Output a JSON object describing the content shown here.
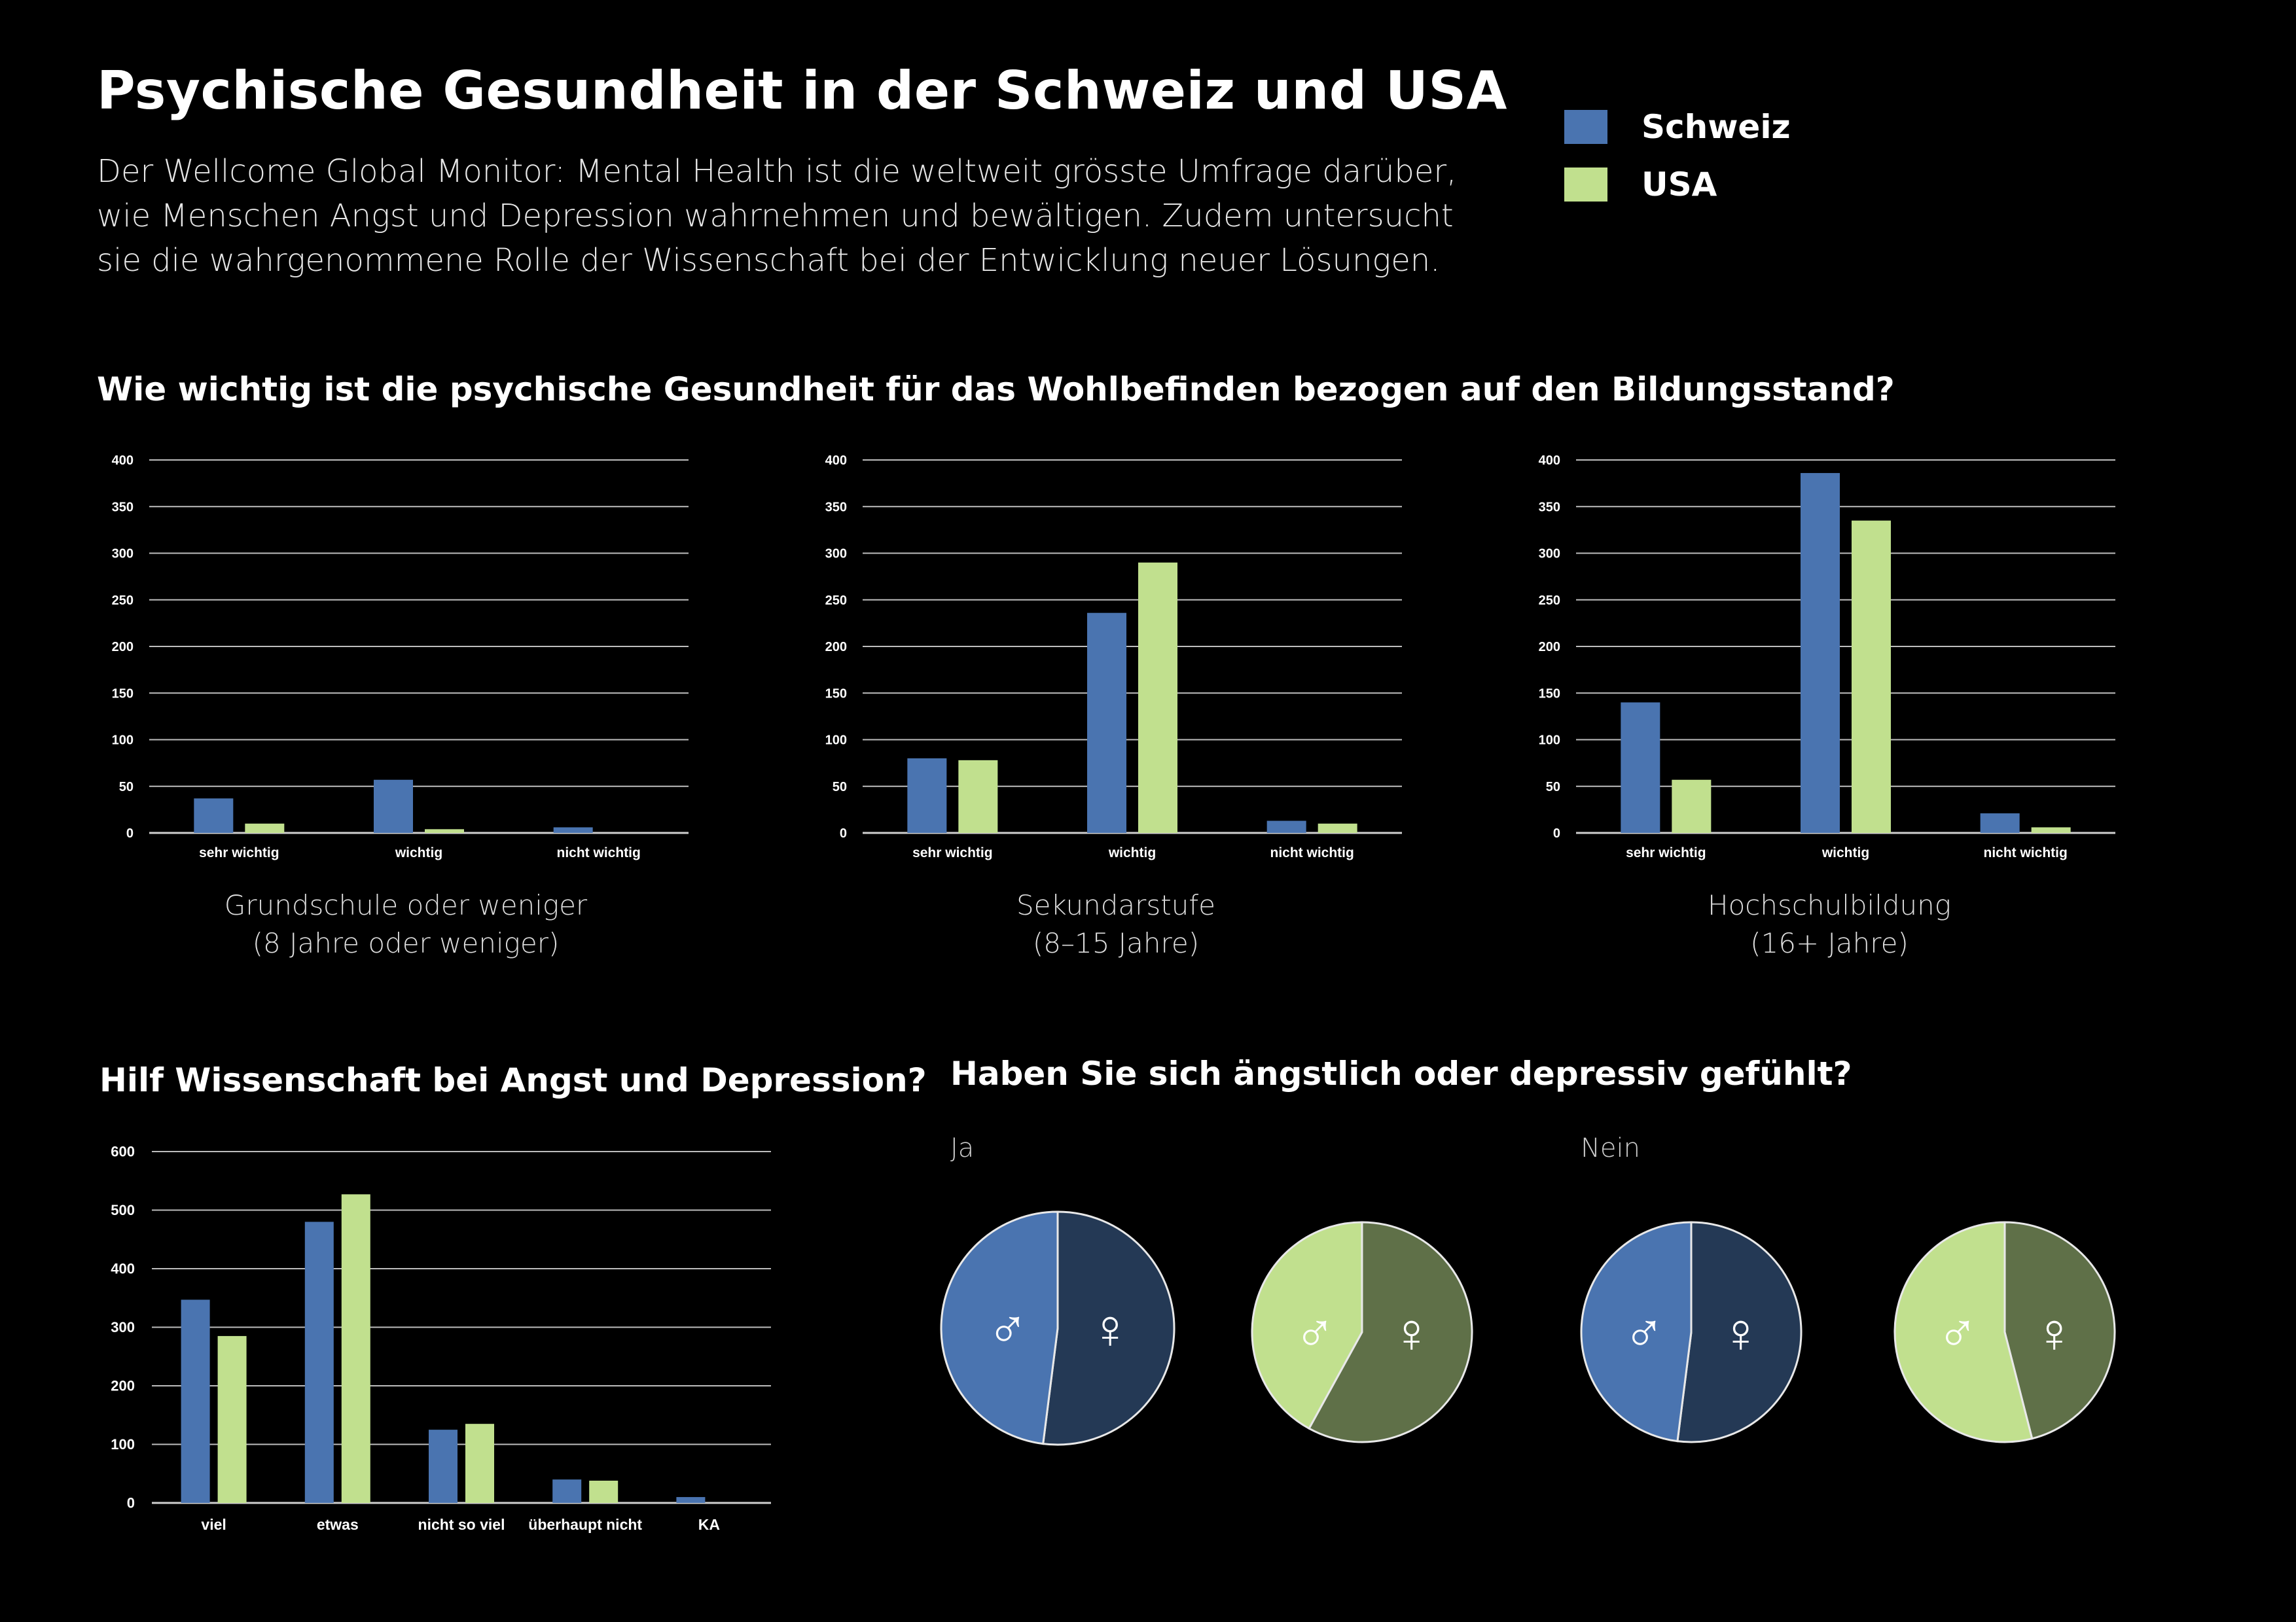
{
  "title": "Psychische Gesundheit in der Schweiz und USA",
  "intro": "Der Wellcome Global Monitor: Mental Health ist die weltweit grösste Umfrage darüber, wie Menschen Angst und Depression wahrnehmen und bewältigen. Zudem untersucht sie die wahrgenommene Rolle der Wissenschaft bei der Entwicklung neuer Lösungen.",
  "legend": [
    {
      "label": "Schweiz",
      "color": "#4a74b0"
    },
    {
      "label": "USA",
      "color": "#c1e08e"
    }
  ],
  "section1_title": "Wie wichtig ist die psychische Gesundheit für das Wohlbefinden bezogen auf den Bildungsstand?",
  "section2_title": "Hilf Wissenschaft bei Angst und Depression?",
  "section3_title": "Haben Sie sich ängstlich oder depressiv gefühlt?",
  "captions": [
    {
      "line1": "Grundschule oder weniger",
      "line2": "(8 Jahre oder weniger)"
    },
    {
      "line1": "Sekundarstufe",
      "line2": "(8–15 Jahre)"
    },
    {
      "line1": "Hochschulbildung",
      "line2": "(16+ Jahre)"
    }
  ],
  "pie_labels": {
    "ja": "Ja",
    "nein": "Nein"
  },
  "chart_data": [
    {
      "type": "bar",
      "categories": [
        "sehr wichtig",
        "wichtig",
        "nicht wichtig"
      ],
      "ylim": [
        0,
        400
      ],
      "yticks": [
        0,
        50,
        100,
        150,
        200,
        250,
        300,
        350,
        400
      ],
      "series": [
        {
          "name": "Schweiz",
          "values": [
            37,
            57,
            6
          ]
        },
        {
          "name": "USA",
          "values": [
            10,
            4,
            0
          ]
        }
      ],
      "grid": true
    },
    {
      "type": "bar",
      "categories": [
        "sehr wichtig",
        "wichtig",
        "nicht wichtig"
      ],
      "ylim": [
        0,
        400
      ],
      "yticks": [
        0,
        50,
        100,
        150,
        200,
        250,
        300,
        350,
        400
      ],
      "series": [
        {
          "name": "Schweiz",
          "values": [
            80,
            236,
            13
          ]
        },
        {
          "name": "USA",
          "values": [
            78,
            290,
            10
          ]
        }
      ],
      "grid": true
    },
    {
      "type": "bar",
      "categories": [
        "sehr wichtig",
        "wichtig",
        "nicht wichtig"
      ],
      "ylim": [
        0,
        400
      ],
      "yticks": [
        0,
        50,
        100,
        150,
        200,
        250,
        300,
        350,
        400
      ],
      "series": [
        {
          "name": "Schweiz",
          "values": [
            140,
            386,
            21
          ]
        },
        {
          "name": "USA",
          "values": [
            57,
            335,
            6
          ]
        }
      ],
      "grid": true
    },
    {
      "type": "bar",
      "categories": [
        "viel",
        "etwas",
        "nicht so viel",
        "überhaupt nicht",
        "KA"
      ],
      "ylim": [
        0,
        600
      ],
      "yticks": [
        0,
        100,
        200,
        300,
        400,
        500,
        600
      ],
      "series": [
        {
          "name": "Schweiz",
          "values": [
            347,
            480,
            125,
            40,
            10
          ]
        },
        {
          "name": "USA",
          "values": [
            285,
            527,
            135,
            38,
            0
          ]
        }
      ],
      "grid": true
    },
    {
      "type": "pie",
      "group": "Ja",
      "country": "Schweiz",
      "labels": [
        "♂",
        "♀"
      ],
      "values": [
        48,
        52
      ],
      "colors": [
        "#4a74b0",
        "#243955"
      ]
    },
    {
      "type": "pie",
      "group": "Ja",
      "country": "USA",
      "labels": [
        "♂",
        "♀"
      ],
      "values": [
        42,
        58
      ],
      "colors": [
        "#c1e08e",
        "#5f7048"
      ]
    },
    {
      "type": "pie",
      "group": "Nein",
      "country": "Schweiz",
      "labels": [
        "♂",
        "♀"
      ],
      "values": [
        48,
        52
      ],
      "colors": [
        "#4a74b0",
        "#243955"
      ]
    },
    {
      "type": "pie",
      "group": "Nein",
      "country": "USA",
      "labels": [
        "♂",
        "♀"
      ],
      "values": [
        54,
        46
      ],
      "colors": [
        "#c1e08e",
        "#5f7048"
      ]
    }
  ]
}
